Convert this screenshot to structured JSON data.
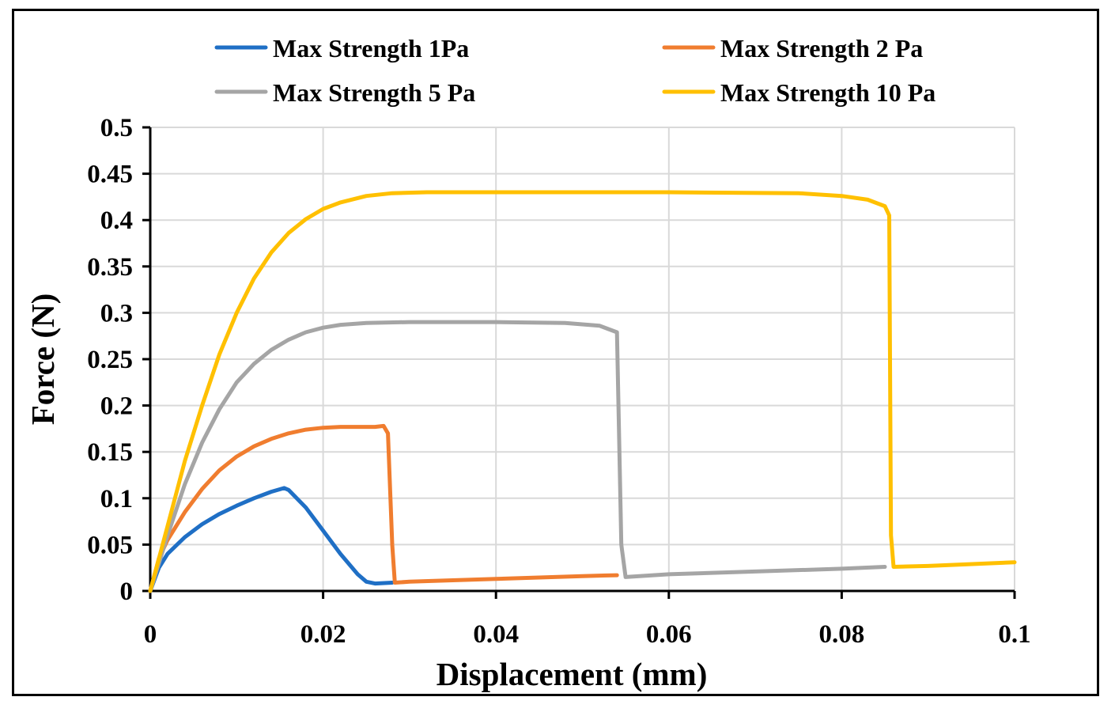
{
  "chart_data": {
    "type": "line",
    "title": "",
    "xlabel": "Displacement (mm)",
    "ylabel": "Force (N)",
    "xlim": [
      0,
      0.1
    ],
    "ylim": [
      0,
      0.5
    ],
    "x_ticks": [
      0,
      0.02,
      0.04,
      0.06,
      0.08,
      0.1
    ],
    "x_tick_labels": [
      "0",
      "0.02",
      "0.04",
      "0.06",
      "0.08",
      "0.1"
    ],
    "y_ticks": [
      0,
      0.05,
      0.1,
      0.15,
      0.2,
      0.25,
      0.3,
      0.35,
      0.4,
      0.45,
      0.5
    ],
    "y_tick_labels": [
      "0",
      "0.05",
      "0.1",
      "0.15",
      "0.2",
      "0.25",
      "0.3",
      "0.35",
      "0.4",
      "0.45",
      "0.5"
    ],
    "grid": true,
    "legend_position": "top",
    "series": [
      {
        "name": "Max Strength 1Pa",
        "color": "#1F6FC5",
        "points": [
          [
            0,
            0
          ],
          [
            0.001,
            0.025
          ],
          [
            0.002,
            0.04
          ],
          [
            0.004,
            0.058
          ],
          [
            0.006,
            0.072
          ],
          [
            0.008,
            0.083
          ],
          [
            0.01,
            0.092
          ],
          [
            0.012,
            0.1
          ],
          [
            0.014,
            0.107
          ],
          [
            0.0155,
            0.111
          ],
          [
            0.016,
            0.109
          ],
          [
            0.018,
            0.09
          ],
          [
            0.02,
            0.065
          ],
          [
            0.022,
            0.04
          ],
          [
            0.024,
            0.018
          ],
          [
            0.025,
            0.01
          ],
          [
            0.026,
            0.008
          ],
          [
            0.028,
            0.009
          ]
        ]
      },
      {
        "name": "Max Strength 2 Pa",
        "color": "#F07D2F",
        "points": [
          [
            0,
            0
          ],
          [
            0.001,
            0.035
          ],
          [
            0.002,
            0.055
          ],
          [
            0.004,
            0.085
          ],
          [
            0.006,
            0.11
          ],
          [
            0.008,
            0.13
          ],
          [
            0.01,
            0.145
          ],
          [
            0.012,
            0.156
          ],
          [
            0.014,
            0.164
          ],
          [
            0.016,
            0.17
          ],
          [
            0.018,
            0.174
          ],
          [
            0.02,
            0.176
          ],
          [
            0.022,
            0.177
          ],
          [
            0.024,
            0.177
          ],
          [
            0.026,
            0.177
          ],
          [
            0.027,
            0.178
          ],
          [
            0.0275,
            0.17
          ],
          [
            0.028,
            0.05
          ],
          [
            0.0283,
            0.009
          ],
          [
            0.03,
            0.01
          ],
          [
            0.04,
            0.013
          ],
          [
            0.05,
            0.016
          ],
          [
            0.054,
            0.017
          ]
        ]
      },
      {
        "name": "Max Strength 5 Pa",
        "color": "#A5A5A5",
        "points": [
          [
            0,
            0
          ],
          [
            0.002,
            0.06
          ],
          [
            0.004,
            0.115
          ],
          [
            0.006,
            0.16
          ],
          [
            0.008,
            0.196
          ],
          [
            0.01,
            0.225
          ],
          [
            0.012,
            0.245
          ],
          [
            0.014,
            0.26
          ],
          [
            0.016,
            0.271
          ],
          [
            0.018,
            0.279
          ],
          [
            0.02,
            0.284
          ],
          [
            0.022,
            0.287
          ],
          [
            0.025,
            0.289
          ],
          [
            0.03,
            0.29
          ],
          [
            0.04,
            0.29
          ],
          [
            0.048,
            0.289
          ],
          [
            0.052,
            0.286
          ],
          [
            0.054,
            0.279
          ],
          [
            0.0545,
            0.05
          ],
          [
            0.055,
            0.015
          ],
          [
            0.06,
            0.018
          ],
          [
            0.07,
            0.021
          ],
          [
            0.08,
            0.024
          ],
          [
            0.085,
            0.026
          ]
        ]
      },
      {
        "name": "Max Strength 10 Pa",
        "color": "#FFC000",
        "points": [
          [
            0,
            0
          ],
          [
            0.002,
            0.07
          ],
          [
            0.004,
            0.14
          ],
          [
            0.006,
            0.2
          ],
          [
            0.008,
            0.255
          ],
          [
            0.01,
            0.3
          ],
          [
            0.012,
            0.337
          ],
          [
            0.014,
            0.365
          ],
          [
            0.016,
            0.386
          ],
          [
            0.018,
            0.401
          ],
          [
            0.02,
            0.412
          ],
          [
            0.022,
            0.419
          ],
          [
            0.025,
            0.426
          ],
          [
            0.028,
            0.429
          ],
          [
            0.032,
            0.43
          ],
          [
            0.04,
            0.43
          ],
          [
            0.06,
            0.43
          ],
          [
            0.075,
            0.429
          ],
          [
            0.08,
            0.426
          ],
          [
            0.083,
            0.422
          ],
          [
            0.085,
            0.415
          ],
          [
            0.0855,
            0.405
          ],
          [
            0.0857,
            0.06
          ],
          [
            0.086,
            0.026
          ],
          [
            0.09,
            0.027
          ],
          [
            0.1,
            0.031
          ]
        ]
      }
    ]
  }
}
